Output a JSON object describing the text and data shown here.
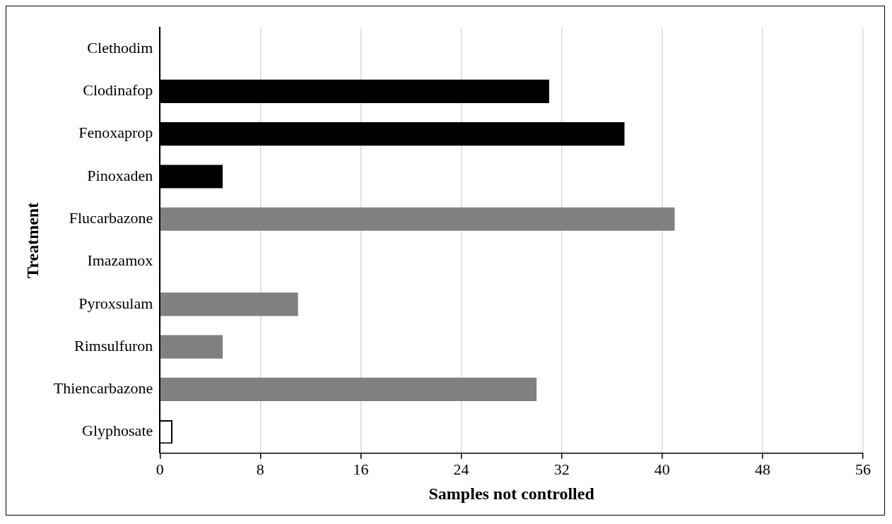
{
  "chart_data": {
    "type": "bar",
    "orientation": "horizontal",
    "xlabel": "Samples not controlled",
    "ylabel": "Treatment",
    "categories": [
      "Clethodim",
      "Clodinafop",
      "Fenoxaprop",
      "Pinoxaden",
      "Flucarbazone",
      "Imazamox",
      "Pyroxsulam",
      "Rimsulfuron",
      "Thiencarbazone",
      "Glyphosate"
    ],
    "values": [
      0,
      31,
      37,
      5,
      41,
      0,
      11,
      5,
      30,
      1
    ],
    "colors": [
      "#000000",
      "#000000",
      "#000000",
      "#000000",
      "#808080",
      "#808080",
      "#808080",
      "#808080",
      "#808080",
      "#ffffff"
    ],
    "xlim": [
      0,
      56
    ],
    "xticks": [
      0,
      8,
      16,
      24,
      32,
      40,
      48,
      56
    ],
    "grid": "x",
    "legend": false
  }
}
